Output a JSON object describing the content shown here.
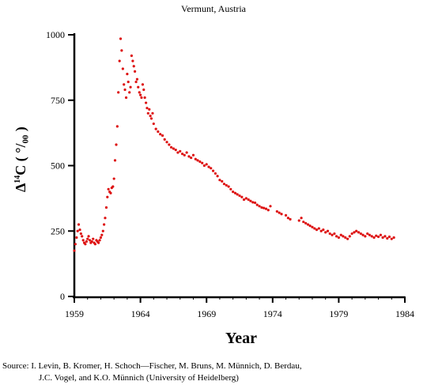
{
  "chart_data": {
    "type": "scatter",
    "title": "Vermunt, Austria",
    "xlabel": "Year",
    "ylabel_prefix": "Δ",
    "ylabel_sup": "14",
    "ylabel_main": "C",
    "ylabel_unit": "( °/₀₀ )",
    "xlim": [
      1959,
      1984
    ],
    "ylim": [
      0,
      1000
    ],
    "x_ticks": [
      "1959",
      "1964",
      "1969",
      "1974",
      "1979",
      "1984"
    ],
    "y_ticks": [
      "0",
      "250",
      "500",
      "750",
      "1000"
    ],
    "grid": false,
    "marker_color": "#dd1111",
    "series": [
      {
        "x": [
          1959.0,
          1959.08,
          1959.17,
          1959.25,
          1959.33,
          1959.42,
          1959.5,
          1959.58,
          1959.67,
          1959.75,
          1959.83,
          1959.92,
          1960.0,
          1960.08,
          1960.17,
          1960.25,
          1960.33,
          1960.42,
          1960.5,
          1960.58,
          1960.67,
          1960.75,
          1960.83,
          1960.92,
          1961.0,
          1961.08,
          1961.17,
          1961.25,
          1961.33,
          1961.42,
          1961.5,
          1961.58,
          1961.67,
          1961.75,
          1961.83,
          1961.92,
          1962.0,
          1962.08,
          1962.17,
          1962.25,
          1962.33,
          1962.42,
          1962.5,
          1962.58,
          1962.67,
          1962.75,
          1962.83,
          1962.92,
          1963.0,
          1963.08,
          1963.17,
          1963.25,
          1963.33,
          1963.42,
          1963.5,
          1963.58,
          1963.67,
          1963.75,
          1963.83,
          1963.92,
          1964.0,
          1964.08,
          1964.17,
          1964.25,
          1964.33,
          1964.42,
          1964.5,
          1964.58,
          1964.67,
          1964.75,
          1964.83,
          1964.92,
          1965.0,
          1965.17,
          1965.33,
          1965.5,
          1965.67,
          1965.83,
          1966.0,
          1966.17,
          1966.33,
          1966.5,
          1966.67,
          1966.83,
          1967.0,
          1967.17,
          1967.33,
          1967.5,
          1967.67,
          1967.83,
          1968.0,
          1968.17,
          1968.33,
          1968.5,
          1968.67,
          1968.83,
          1969.0,
          1969.17,
          1969.33,
          1969.5,
          1969.67,
          1969.83,
          1970.0,
          1970.17,
          1970.33,
          1970.5,
          1970.67,
          1970.83,
          1971.0,
          1971.17,
          1971.33,
          1971.5,
          1971.67,
          1971.83,
          1972.0,
          1972.17,
          1972.33,
          1972.5,
          1972.67,
          1972.83,
          1973.0,
          1973.17,
          1973.33,
          1973.5,
          1973.67,
          1973.83,
          1974.33,
          1974.5,
          1974.67,
          1975.0,
          1975.17,
          1975.33,
          1976.0,
          1976.17,
          1976.33,
          1976.5,
          1976.67,
          1976.83,
          1977.0,
          1977.17,
          1977.33,
          1977.5,
          1977.67,
          1977.83,
          1978.0,
          1978.17,
          1978.33,
          1978.5,
          1978.67,
          1978.83,
          1979.0,
          1979.17,
          1979.33,
          1979.5,
          1979.67,
          1979.83,
          1980.0,
          1980.17,
          1980.33,
          1980.5,
          1980.67,
          1980.83,
          1981.0,
          1981.17,
          1981.33,
          1981.5,
          1981.67,
          1981.83,
          1982.0,
          1982.17,
          1982.33,
          1982.5,
          1982.67,
          1982.83,
          1983.0,
          1983.17
        ],
        "y": [
          175,
          200,
          225,
          250,
          275,
          255,
          240,
          230,
          215,
          205,
          200,
          210,
          220,
          230,
          215,
          205,
          210,
          220,
          205,
          200,
          215,
          210,
          205,
          215,
          225,
          235,
          250,
          275,
          300,
          340,
          380,
          410,
          400,
          395,
          415,
          420,
          450,
          520,
          580,
          650,
          780,
          900,
          985,
          940,
          870,
          810,
          790,
          760,
          850,
          820,
          780,
          800,
          920,
          900,
          880,
          860,
          820,
          830,
          800,
          780,
          770,
          760,
          810,
          790,
          760,
          740,
          720,
          700,
          715,
          690,
          680,
          700,
          660,
          640,
          630,
          620,
          615,
          600,
          590,
          580,
          570,
          565,
          560,
          550,
          555,
          545,
          540,
          550,
          535,
          530,
          540,
          525,
          520,
          515,
          510,
          500,
          505,
          495,
          490,
          480,
          470,
          460,
          445,
          440,
          430,
          425,
          420,
          410,
          400,
          395,
          390,
          385,
          380,
          370,
          375,
          370,
          365,
          360,
          358,
          350,
          345,
          340,
          338,
          335,
          330,
          345,
          325,
          320,
          315,
          310,
          300,
          295,
          290,
          300,
          285,
          280,
          275,
          270,
          265,
          260,
          255,
          260,
          250,
          255,
          245,
          250,
          240,
          235,
          240,
          230,
          225,
          235,
          230,
          225,
          220,
          230,
          240,
          245,
          250,
          245,
          240,
          235,
          230,
          240,
          235,
          230,
          225,
          232,
          228,
          235,
          225,
          230,
          222,
          228,
          220,
          225
        ]
      }
    ]
  },
  "source_line1": "Source:  I. Levin, B. Kromer, H. Schoch—Fischer, M. Bruns, M. Münnich, D. Berdau,",
  "source_line2": "J.C. Vogel, and K.O. Münnich (University of Heidelberg)"
}
